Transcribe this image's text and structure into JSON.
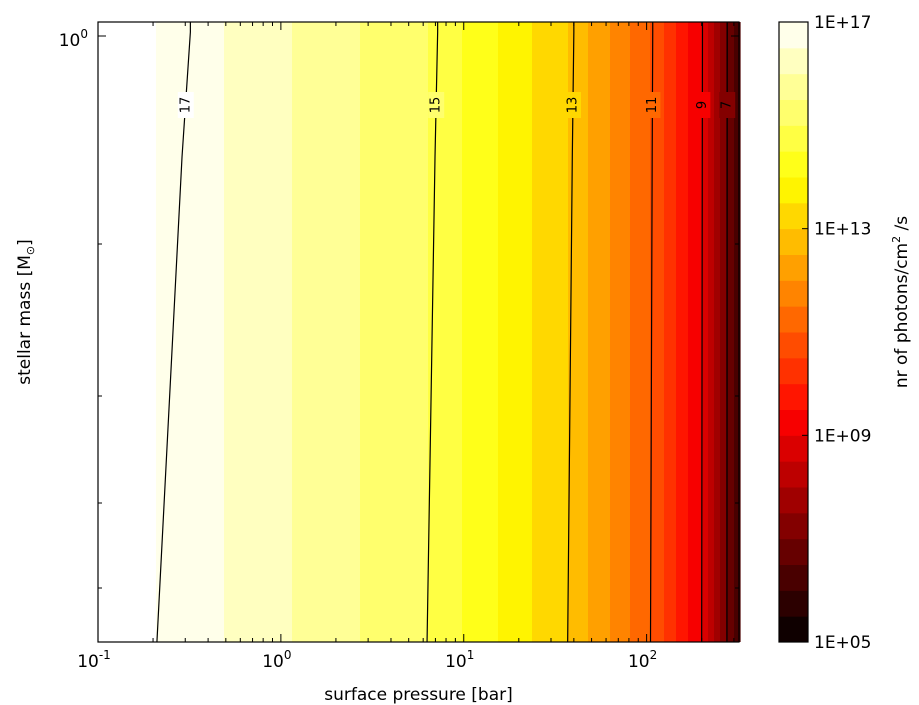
{
  "chart_data": {
    "type": "heatmap",
    "title": "",
    "xlabel": "surface pressure [bar]",
    "ylabel_text": "stellar mass [M",
    "ylabel_sub": "⊙",
    "ylabel_close": "]",
    "x_scale": "log",
    "y_scale": "log",
    "xlim": [
      0.1,
      320
    ],
    "x_ticks": [
      {
        "base": "10",
        "exp": "-1",
        "value": 0.1
      },
      {
        "base": "10",
        "exp": "0",
        "value": 1
      },
      {
        "base": "10",
        "exp": "1",
        "value": 10
      },
      {
        "base": "10",
        "exp": "2",
        "value": 100
      }
    ],
    "y_ticks": [
      {
        "base": "10",
        "exp": "0",
        "value": 1.0
      }
    ],
    "colorbar": {
      "label_text": "nr of photons/cm",
      "label_sup": "2",
      "label_end": " /s",
      "min_exp": 5,
      "max_exp": 17,
      "levels": 24,
      "colormap": "hot",
      "tick_labels": [
        {
          "text": "1E+17",
          "exp": 17
        },
        {
          "text": "1E+13",
          "exp": 13
        },
        {
          "text": "1E+09",
          "exp": 9
        },
        {
          "text": "1E+05",
          "exp": 5
        }
      ]
    },
    "contours": [
      {
        "level": 17,
        "label": "17",
        "x_bottom": 0.21,
        "x_top": 0.32
      },
      {
        "level": 15,
        "label": "15",
        "x_bottom": 6.3,
        "x_top": 7.2
      },
      {
        "level": 13,
        "label": "13",
        "x_bottom": 37,
        "x_top": 40
      },
      {
        "level": 11,
        "label": "11",
        "x_bottom": 105,
        "x_top": 108
      },
      {
        "level": 9,
        "label": "9",
        "x_bottom": 200,
        "x_top": 202
      },
      {
        "level": 7,
        "label": "7",
        "x_bottom": 275,
        "x_top": 276
      }
    ],
    "grid": false,
    "legend": "none"
  }
}
